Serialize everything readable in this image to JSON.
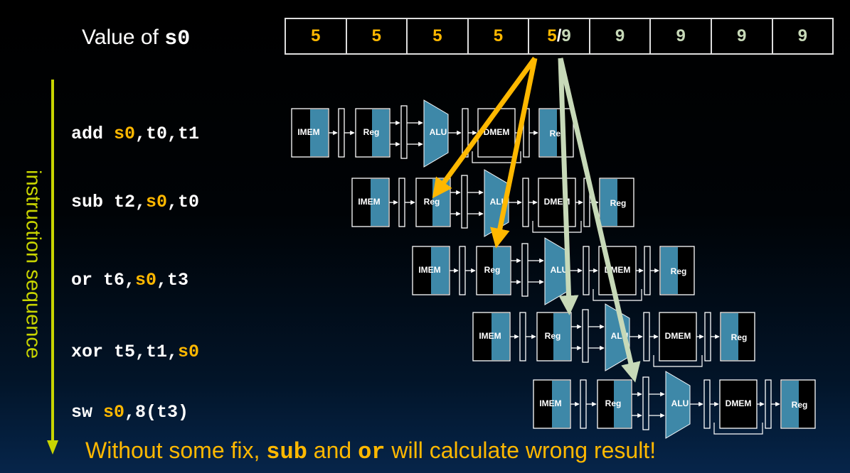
{
  "register_label": {
    "prefix": "Value of ",
    "reg": "s0"
  },
  "register_values": {
    "cells": [
      {
        "old": "5"
      },
      {
        "old": "5"
      },
      {
        "old": "5"
      },
      {
        "old": "5"
      },
      {
        "old": "5",
        "slash": "/",
        "new": "9"
      },
      {
        "new": "9"
      },
      {
        "new": "9"
      },
      {
        "new": "9"
      },
      {
        "new": "9"
      }
    ]
  },
  "instructions": [
    {
      "op": "add ",
      "parts": [
        {
          "text": "s0",
          "hl": true
        },
        {
          "text": ",t0,t1",
          "hl": false
        }
      ]
    },
    {
      "op": "sub ",
      "parts": [
        {
          "text": "t2,",
          "hl": false
        },
        {
          "text": "s0",
          "hl": true
        },
        {
          "text": ",t0",
          "hl": false
        }
      ]
    },
    {
      "op": "or ",
      "parts": [
        {
          "text": "t6,",
          "hl": false
        },
        {
          "text": "s0",
          "hl": true
        },
        {
          "text": ",t3",
          "hl": false
        }
      ]
    },
    {
      "op": "xor ",
      "parts": [
        {
          "text": "t5,t1,",
          "hl": false
        },
        {
          "text": "s0",
          "hl": true
        }
      ]
    },
    {
      "op": "sw ",
      "parts": [
        {
          "text": "s0",
          "hl": true
        },
        {
          "text": ",8(t3)",
          "hl": false
        }
      ]
    }
  ],
  "axis_label": "instruction sequence",
  "stages": {
    "imem": "IMEM",
    "reg": "Reg",
    "alu": "ALU",
    "dmem": "DMEM"
  },
  "warning": {
    "pre": "Without some fix, ",
    "w1": "sub",
    "mid": " and ",
    "w2": "or",
    "post": " will calculate wrong result!"
  },
  "colors": {
    "old_value": "#ffb800",
    "new_value": "#c7d9b8",
    "stage_fill": "#3e88a8",
    "axis": "#c8d400",
    "text": "#ffffff"
  }
}
